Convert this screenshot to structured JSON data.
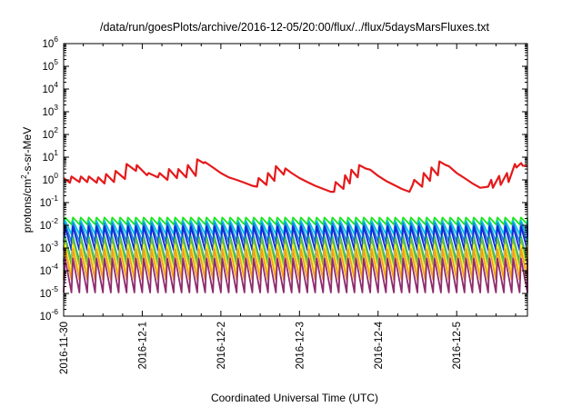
{
  "chart_data": {
    "type": "line",
    "title": "/data/run/goesPlots/archive/2016-12-05/20:00/flux/../flux/5daysMarsFluxes.txt",
    "xlabel": "Coordinated Universal Time (UTC)",
    "ylabel": "protons/cm2-s-sr-MeV",
    "ylabel_base": "protons/cm",
    "ylabel_sup": "2",
    "ylabel_rest": "-s-sr-MeV",
    "y_scale": "log",
    "ylim_exp": [
      -6,
      6
    ],
    "y_ticks": [
      {
        "base": "10",
        "exp": "-6",
        "value": -6
      },
      {
        "base": "10",
        "exp": "-5",
        "value": -5
      },
      {
        "base": "10",
        "exp": "-4",
        "value": -4
      },
      {
        "base": "10",
        "exp": "-3",
        "value": -3
      },
      {
        "base": "10",
        "exp": "-2",
        "value": -2
      },
      {
        "base": "10",
        "exp": "-1",
        "value": -1
      },
      {
        "base": "10",
        "exp": "0",
        "value": 0
      },
      {
        "base": "10",
        "exp": "1",
        "value": 1
      },
      {
        "base": "10",
        "exp": "2",
        "value": 2
      },
      {
        "base": "10",
        "exp": "3",
        "value": 3
      },
      {
        "base": "10",
        "exp": "4",
        "value": 4
      },
      {
        "base": "10",
        "exp": "5",
        "value": 5
      },
      {
        "base": "10",
        "exp": "6",
        "value": 6
      }
    ],
    "x_ticks": [
      "2016-11-30",
      "2016-12-1",
      "2016-12-2",
      "2016-12-3",
      "2016-12-4",
      "2016-12-5"
    ],
    "xlim_days": [
      0,
      5.9
    ],
    "grid": false,
    "series": [
      {
        "color": "#e41a1c",
        "x": [
          0.0,
          0.08,
          0.1,
          0.2,
          0.22,
          0.3,
          0.32,
          0.42,
          0.44,
          0.52,
          0.54,
          0.64,
          0.66,
          0.78,
          0.8,
          0.92,
          0.93,
          1.06,
          1.08,
          1.2,
          1.22,
          1.32,
          1.34,
          1.44,
          1.46,
          1.56,
          1.58,
          1.68,
          1.7,
          1.78,
          1.8,
          1.9,
          2.0,
          2.1,
          2.2,
          2.3,
          2.4,
          2.46,
          2.48,
          2.58,
          2.6,
          2.68,
          2.7,
          2.8,
          2.82,
          2.9,
          3.0,
          3.1,
          3.2,
          3.3,
          3.4,
          3.44,
          3.46,
          3.56,
          3.58,
          3.64,
          3.66,
          3.74,
          3.76,
          3.84,
          3.9,
          4.0,
          4.1,
          4.2,
          4.3,
          4.4,
          4.44,
          4.46,
          4.56,
          4.58,
          4.66,
          4.68,
          4.76,
          4.78,
          4.86,
          4.9,
          5.0,
          5.1,
          5.2,
          5.3,
          5.4,
          5.44,
          5.46,
          5.54,
          5.56,
          5.64,
          5.66,
          5.74,
          5.76,
          5.82,
          5.84,
          5.9
        ],
        "y": [
          1.2,
          0.75,
          1.4,
          0.8,
          1.4,
          0.8,
          1.4,
          0.75,
          1.3,
          0.7,
          1.8,
          0.8,
          2.5,
          1.1,
          5.0,
          2.5,
          4.5,
          1.6,
          2.0,
          1.3,
          2.0,
          1.0,
          3.0,
          1.2,
          3.0,
          1.3,
          4.5,
          1.5,
          8.0,
          5.5,
          6.0,
          3.5,
          2.0,
          1.3,
          1.0,
          0.75,
          0.55,
          0.5,
          1.2,
          0.6,
          2.0,
          0.9,
          4.0,
          1.7,
          3.2,
          2.0,
          1.2,
          0.8,
          0.55,
          0.4,
          0.3,
          0.3,
          0.8,
          0.4,
          1.6,
          0.7,
          2.8,
          1.3,
          4.5,
          3.2,
          2.8,
          1.5,
          0.9,
          0.6,
          0.4,
          0.3,
          0.6,
          1.0,
          0.5,
          2.0,
          0.9,
          3.5,
          1.6,
          6.5,
          4.5,
          4.0,
          2.0,
          1.2,
          0.7,
          0.45,
          0.5,
          1.0,
          0.45,
          1.5,
          0.6,
          2.0,
          0.8,
          5.0,
          3.5,
          5.5,
          4.2,
          4.0
        ]
      },
      {
        "color": "#1ce61c",
        "period": 0.1,
        "high": 0.022,
        "low": 0.011
      },
      {
        "color": "#00c4e0",
        "period": 0.1,
        "high": 0.016,
        "low": 0.004
      },
      {
        "color": "#2080d8",
        "period": 0.1,
        "high": 0.012,
        "low": 0.0018
      },
      {
        "color": "#1428dc",
        "period": 0.1,
        "high": 0.009,
        "low": 0.0008
      },
      {
        "color": "#00a896",
        "period": 0.1,
        "high": 0.0032,
        "low": 0.00025
      },
      {
        "color": "#6cbd45",
        "period": 0.1,
        "high": 0.0026,
        "low": 0.00018
      },
      {
        "color": "#ffee22",
        "period": 0.1,
        "high": 0.0014,
        "low": 7e-05
      },
      {
        "color": "#f0a020",
        "period": 0.1,
        "high": 0.0009,
        "low": 4e-05
      },
      {
        "color": "#8f2b6f",
        "period": 0.1,
        "high": 0.00035,
        "low": 1.1e-05
      }
    ]
  }
}
